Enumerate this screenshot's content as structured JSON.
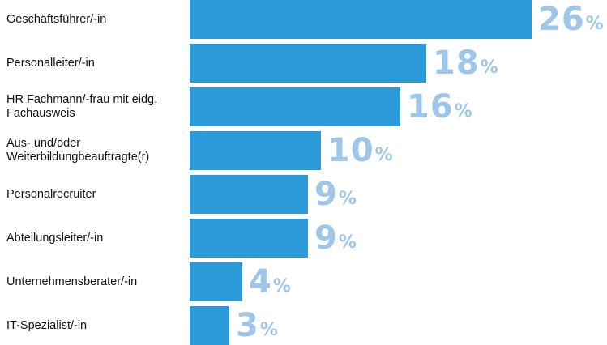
{
  "chart_data": {
    "type": "bar",
    "orientation": "horizontal",
    "categories": [
      "Geschäftsführer/-in",
      "Personalleiter/-in",
      "HR Fachmann/-frau mit eidg.\nFachausweis",
      "Aus- und/oder\nWeiterbildungbeauftragte(r)",
      "Personalrecruiter",
      "Abteilungsleiter/-in",
      "Unternehmensberater/-in",
      "IT-Spezialist/-in"
    ],
    "values": [
      26,
      18,
      16,
      10,
      9,
      9,
      4,
      3
    ],
    "value_suffix": "%",
    "xlim": [
      0,
      26
    ],
    "grid": false,
    "legend": "none"
  },
  "colors": {
    "bar": "#2b9ad9",
    "value_label": "#9dc6e9",
    "category_text": "#111111"
  }
}
